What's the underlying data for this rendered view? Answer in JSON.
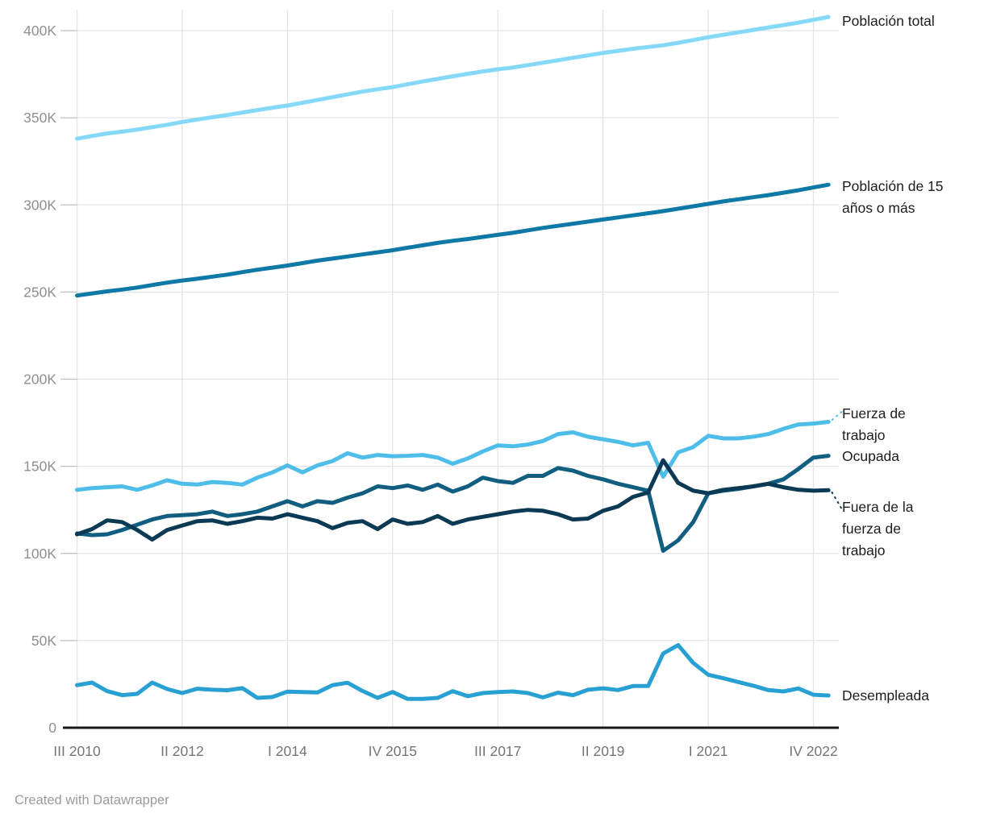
{
  "footer": {
    "credit": "Created with Datawrapper"
  },
  "chart_data": {
    "type": "line",
    "title": "",
    "xlabel": "",
    "ylabel": "",
    "values_unit": "thousands of people (K)",
    "grid": true,
    "legend_position": "right of line ends",
    "ylim": [
      0,
      412
    ],
    "y_ticks": [
      {
        "value": 0,
        "label": "0"
      },
      {
        "value": 50,
        "label": "50K"
      },
      {
        "value": 100,
        "label": "100K"
      },
      {
        "value": 150,
        "label": "150K"
      },
      {
        "value": 200,
        "label": "200K"
      },
      {
        "value": 250,
        "label": "250K"
      },
      {
        "value": 300,
        "label": "300K"
      },
      {
        "value": 350,
        "label": "350K"
      },
      {
        "value": 400,
        "label": "400K"
      }
    ],
    "x_tick_indices": [
      0,
      7,
      14,
      21,
      28,
      35,
      42,
      49
    ],
    "x_tick_labels": [
      "III 2010",
      "II 2012",
      "I 2014",
      "IV 2015",
      "III 2017",
      "II 2019",
      "I 2021",
      "IV 2022"
    ],
    "categories": [
      "III 2010",
      "IV 2010",
      "I 2011",
      "II 2011",
      "III 2011",
      "IV 2011",
      "I 2012",
      "II 2012",
      "III 2012",
      "IV 2012",
      "I 2013",
      "II 2013",
      "III 2013",
      "IV 2013",
      "I 2014",
      "II 2014",
      "III 2014",
      "IV 2014",
      "I 2015",
      "II 2015",
      "III 2015",
      "IV 2015",
      "I 2016",
      "II 2016",
      "III 2016",
      "IV 2016",
      "I 2017",
      "II 2017",
      "III 2017",
      "IV 2017",
      "I 2018",
      "II 2018",
      "III 2018",
      "IV 2018",
      "I 2019",
      "II 2019",
      "III 2019",
      "IV 2019",
      "I 2020",
      "II 2020",
      "III 2020",
      "IV 2020",
      "I 2021",
      "II 2021",
      "III 2021",
      "IV 2021",
      "I 2022",
      "II 2022",
      "III 2022",
      "IV 2022",
      "I 2023"
    ],
    "series": [
      {
        "id": "poblacion-total",
        "name": "Población total",
        "color": "#85d9f8",
        "connector": "none",
        "values": [
          338,
          339.5,
          341,
          342,
          343.2,
          344.6,
          346,
          347.6,
          349,
          350.3,
          351.6,
          353,
          354.4,
          355.8,
          357,
          358.6,
          360.2,
          361.8,
          363.4,
          365,
          366.4,
          367.6,
          369.2,
          370.8,
          372.3,
          373.8,
          375.2,
          376.6,
          377.8,
          378.8,
          380.2,
          381.6,
          383,
          384.4,
          385.8,
          387.2,
          388.4,
          389.6,
          390.6,
          391.6,
          393,
          394.6,
          396.2,
          397.6,
          399,
          400.4,
          401.8,
          403.2,
          404.6,
          406.2,
          407.8
        ]
      },
      {
        "id": "poblacion-15",
        "name": "Población de 15 años o más",
        "color": "#0e79a7",
        "connector": "none",
        "values": [
          248,
          249.2,
          250.4,
          251.4,
          252.6,
          254,
          255.4,
          256.6,
          257.6,
          258.8,
          260,
          261.4,
          262.8,
          264,
          265.2,
          266.6,
          268,
          269.2,
          270.4,
          271.6,
          272.8,
          274,
          275.4,
          276.8,
          278.2,
          279.4,
          280.4,
          281.6,
          282.8,
          284,
          285.4,
          286.8,
          288,
          289.2,
          290.4,
          291.6,
          292.8,
          294,
          295.2,
          296.4,
          297.8,
          299.2,
          300.6,
          302,
          303.2,
          304.4,
          305.6,
          307,
          308.4,
          310,
          311.6
        ]
      },
      {
        "id": "fuerza-de-trabajo",
        "name": "Fuerza de trabajo",
        "color": "#4fbde9",
        "connector": "up",
        "values": [
          136.5,
          137.5,
          138,
          138.5,
          136.5,
          139,
          142,
          140,
          139.5,
          141,
          140.5,
          139.5,
          143.5,
          146.5,
          150.5,
          146.5,
          150.5,
          153,
          157.5,
          155,
          156.5,
          155.8,
          156,
          156.5,
          155,
          151.5,
          154.5,
          158.5,
          162,
          161.5,
          162.5,
          164.5,
          168.5,
          169.5,
          167,
          165.5,
          164,
          162,
          163.5,
          144,
          158,
          161,
          167.5,
          166,
          166,
          167,
          168.5,
          171.5,
          174,
          174.5,
          175.5
        ]
      },
      {
        "id": "ocupada",
        "name": "Ocupada",
        "color": "#115e80",
        "connector": "none",
        "values": [
          111.5,
          110.5,
          111,
          113.5,
          116.5,
          119.5,
          121.5,
          122,
          122.5,
          124,
          121.5,
          122.5,
          124,
          127,
          130,
          127,
          130,
          129,
          132,
          134.5,
          138.5,
          137.5,
          139,
          136.5,
          139.5,
          135.5,
          138.5,
          143.5,
          141.5,
          140.5,
          144.5,
          144.5,
          149,
          147.5,
          144.5,
          142.5,
          140,
          138,
          136,
          101.5,
          107.5,
          118,
          134.5,
          136,
          137,
          138.5,
          140,
          142.5,
          148.5,
          155,
          156
        ]
      },
      {
        "id": "fuera-de-la-fuerza",
        "name": "Fuera de la fuerza de trabajo",
        "color": "#0c3a54",
        "connector": "down",
        "values": [
          111,
          114,
          119,
          118,
          113.5,
          108,
          113.5,
          116,
          118.5,
          119,
          117,
          118.5,
          120.5,
          120,
          122.5,
          120.5,
          118.5,
          114.5,
          117.5,
          118.5,
          114,
          119.5,
          117,
          118,
          121.5,
          117,
          119.5,
          121,
          122.5,
          124,
          125,
          124.5,
          122.5,
          119.5,
          120,
          124.5,
          127,
          132.5,
          135,
          153.5,
          140.5,
          136,
          134.5,
          136.5,
          137.5,
          138.5,
          140,
          138,
          136.5,
          136,
          136.3
        ]
      },
      {
        "id": "desempleada",
        "name": "Desempleada",
        "color": "#28a0d3",
        "connector": "none",
        "values": [
          24.4,
          25.9,
          21,
          18.7,
          19.4,
          25.9,
          22.2,
          19.9,
          22.4,
          21.8,
          21.5,
          22.7,
          17.1,
          17.6,
          20.7,
          20.5,
          20.2,
          24.4,
          25.8,
          21.1,
          17.1,
          20.5,
          16.5,
          16.5,
          17.1,
          21,
          18.1,
          19.9,
          20.5,
          20.8,
          19.9,
          17.4,
          20.1,
          18.7,
          21.8,
          22.6,
          21.6,
          23.9,
          23.9,
          42.6,
          47.4,
          37.2,
          30.4,
          28.4,
          26.2,
          24.1,
          21.6,
          20.8,
          22.5,
          18.9,
          18.5
        ]
      }
    ],
    "style": {
      "grid_color": "#e4e4e4",
      "tick_color": "#c2c2c2",
      "baseline_color": "#1a1a1a",
      "y_label_color": "#8f8f8f",
      "x_label_color": "#757575",
      "label_color": "#1d1d1d",
      "background": "#ffffff"
    }
  }
}
